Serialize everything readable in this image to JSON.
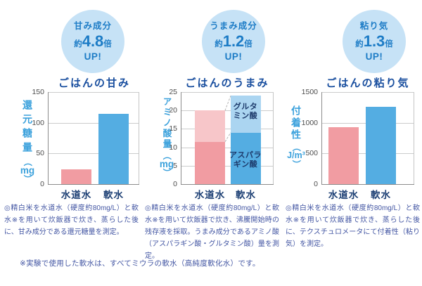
{
  "colors": {
    "pink": "#F19CA2",
    "pink_light": "#F7C6C9",
    "blue": "#54ADE2",
    "blue_light": "#ABD5F1",
    "badge_bg": "#C6E2F6",
    "badge_text": "#1D7CC6",
    "title": "#1A4F9F",
    "category": "#1C3F74",
    "ylabel": "#3BA1DC",
    "tick": "#4D4D4D",
    "grid": "#CBCCCC",
    "axis": "#8C8C8C",
    "note": "#4356A3",
    "dash": "#B3B3B3"
  },
  "panels": [
    {
      "badge": {
        "line1": "甘み成分",
        "approx": "約",
        "value": "4.8",
        "unit": "倍",
        "up": "UP!"
      },
      "title": "ごはんの甘み",
      "ylabel_chars": "還元糖量",
      "yunit": "mg",
      "note": "◎精白米を水道水（硬度約80mg/L）と軟水※を用いて炊飯器で炊き、蒸らした後に、甘み成分である還元糖量を測定。"
    },
    {
      "badge": {
        "line1": "うまみ成分",
        "approx": "約",
        "value": "1.2",
        "unit": "倍",
        "up": "UP!"
      },
      "title": "ごはんのうまみ",
      "ylabel_chars": "アミノ酸量",
      "yunit": "mg",
      "seg_top_l1": "グルタ",
      "seg_top_l2": "ミン酸",
      "seg_bottom_l1": "アスパラ",
      "seg_bottom_l2": "ギン酸",
      "note": "◎精白米を水道水（硬度約80mg/L）と軟水※を用いて炊飯器で炊き、沸騰開始時の残存液を採取。うまみ成分であるアミノ酸（アスパラギン酸・グルタミン酸）量を測定。"
    },
    {
      "badge": {
        "line1": "粘り気",
        "approx": "約",
        "value": "1.3",
        "unit": "倍",
        "up": "UP!"
      },
      "title": "ごはんの粘り気",
      "ylabel_chars": "付着性",
      "yunit": "J/m³",
      "note": "◎精白米を水道水（硬度約80mg/L）と軟水※を用いて炊飯器で炊き、蒸らした後に、テクスチュロメータにて付着性（粘り気）を測定。"
    }
  ],
  "footer_note": "※実験で使用した軟水は、すべてミウラの軟水（高純度軟化水）です。",
  "chart_data": [
    {
      "type": "bar",
      "title": "ごはんの甘み",
      "ylabel": "還元糖量（mg）",
      "categories": [
        "水道水",
        "軟水"
      ],
      "values": [
        24,
        115
      ],
      "ylim": [
        0,
        150
      ],
      "yticks": [
        0,
        50,
        100,
        150
      ],
      "grid": true,
      "annotation": "甘み成分 約4.8倍 UP!"
    },
    {
      "type": "bar",
      "subtype": "stacked",
      "title": "ごはんのうまみ",
      "ylabel": "アミノ酸量（mg）",
      "categories": [
        "水道水",
        "軟水"
      ],
      "series": [
        {
          "name": "アスパラギン酸",
          "values": [
            11.5,
            14
          ]
        },
        {
          "name": "グルタミン酸",
          "values": [
            8.5,
            10
          ]
        }
      ],
      "totals": [
        20,
        24
      ],
      "ylim": [
        0,
        25
      ],
      "yticks": [
        0,
        5,
        10,
        15,
        20,
        25
      ],
      "grid": true,
      "annotation": "うまみ成分 約1.2倍 UP!"
    },
    {
      "type": "bar",
      "title": "ごはんの粘り気",
      "ylabel": "付着性（J/m³）",
      "categories": [
        "水道水",
        "軟水"
      ],
      "values": [
        930,
        1260
      ],
      "ylim": [
        0,
        1500
      ],
      "yticks": [
        0,
        500,
        1000,
        1500
      ],
      "grid": true,
      "annotation": "粘り気 約1.3倍 UP!"
    }
  ]
}
